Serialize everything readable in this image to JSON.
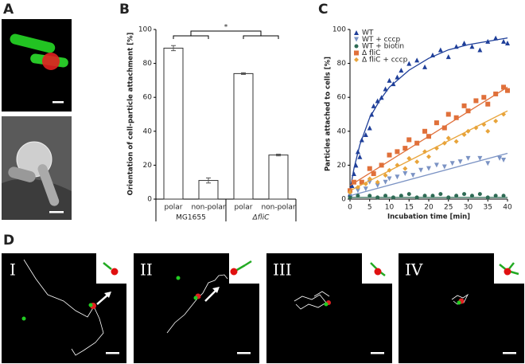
{
  "panel_labels": [
    "A",
    "B",
    "C",
    "D"
  ],
  "d_labels": [
    "I",
    "II",
    "III",
    "IV"
  ],
  "chart_data": [
    {
      "type": "bar",
      "y_label": "Orientation of cell-particle attachment [%]",
      "categories": [
        "polar",
        "non-polar",
        "polar",
        "non-polar"
      ],
      "group_labels": [
        "MG1655",
        "ΔfliC"
      ],
      "values": [
        89,
        11,
        74,
        26
      ],
      "errors": [
        1.5,
        1.5,
        0.5,
        0.5
      ],
      "annotation": "*",
      "color": "#ffffff",
      "ylim": [
        0,
        100
      ],
      "yticks": [
        0,
        20,
        40,
        60,
        80,
        100
      ]
    },
    {
      "type": "scatter",
      "x_label": "Incubation time [min]",
      "y_label": "Particles attached to cells [%]",
      "legend": "top-left",
      "xlim": [
        0,
        40
      ],
      "xticks": [
        0,
        5,
        10,
        15,
        20,
        25,
        30,
        35,
        40
      ],
      "ylim": [
        0,
        100
      ],
      "yticks": [
        0,
        20,
        40,
        60,
        80,
        100
      ],
      "series": [
        {
          "name": "WT",
          "color": "#1f3f99",
          "marker": "triangle-up",
          "x": [
            0,
            0.5,
            1,
            1.5,
            2,
            2.5,
            3,
            4,
            5,
            5.5,
            6,
            7,
            8,
            9,
            10,
            11,
            12,
            13,
            15,
            17,
            19,
            21,
            23,
            25,
            27,
            29,
            31,
            33,
            35,
            37,
            39,
            40
          ],
          "values": [
            3,
            8,
            15,
            20,
            28,
            25,
            35,
            38,
            42,
            50,
            55,
            58,
            60,
            65,
            70,
            68,
            72,
            76,
            80,
            82,
            78,
            85,
            88,
            84,
            90,
            92,
            90,
            88,
            93,
            95,
            93,
            92
          ],
          "fit": {
            "x": [
              0,
              1,
              2.5,
              5,
              7.5,
              10,
              15,
              20,
              25,
              30,
              35,
              40
            ],
            "values": [
              5,
              18,
              32,
              48,
              58,
              66,
              76,
              83,
              88,
              91,
              93,
              95
            ]
          }
        },
        {
          "name": "WT + cccp",
          "color": "#7b93c4",
          "marker": "triangle-down",
          "x": [
            0,
            2,
            4,
            5,
            7,
            9,
            10,
            12,
            14,
            16,
            18,
            20,
            22,
            24,
            26,
            28,
            30,
            33,
            35,
            38,
            39
          ],
          "values": [
            3,
            5,
            6,
            10,
            8,
            10,
            12,
            13,
            15,
            14,
            17,
            18,
            20,
            19,
            21,
            22,
            24,
            24,
            21,
            24,
            23
          ],
          "fit": {
            "x": [
              0,
              40
            ],
            "values": [
              2,
              27
            ]
          }
        },
        {
          "name": "WT + biotin",
          "color": "#2e6b55",
          "marker": "circle",
          "x": [
            0,
            2,
            5,
            7,
            9,
            11,
            13,
            15,
            17,
            19,
            21,
            23,
            25,
            27,
            29,
            31,
            33,
            35,
            37,
            39
          ],
          "values": [
            1,
            2,
            2,
            1,
            2,
            1,
            2,
            3,
            1,
            2,
            2,
            3,
            1,
            2,
            3,
            2,
            3,
            1,
            2,
            2
          ],
          "fit": {
            "x": [
              0,
              40
            ],
            "values": [
              1,
              1
            ]
          }
        },
        {
          "name": "Δ fliC",
          "color": "#e0703a",
          "marker": "square",
          "x": [
            0,
            1,
            3,
            5,
            6,
            8,
            10,
            12,
            14,
            15,
            17,
            19,
            20,
            22,
            24,
            25,
            27,
            29,
            30,
            32,
            34,
            35,
            37,
            39,
            40
          ],
          "values": [
            5,
            10,
            10,
            18,
            15,
            20,
            26,
            28,
            30,
            35,
            33,
            40,
            37,
            45,
            42,
            50,
            48,
            55,
            52,
            58,
            60,
            56,
            62,
            66,
            64
          ],
          "fit": {
            "x": [
              0,
              40
            ],
            "values": [
              8,
              66
            ]
          }
        },
        {
          "name": "Δ fliC + cccp",
          "color": "#e8a43a",
          "marker": "diamond",
          "x": [
            0,
            2,
            4,
            5,
            7,
            9,
            10,
            12,
            14,
            15,
            17,
            19,
            20,
            22,
            24,
            25,
            27,
            29,
            30,
            32,
            34,
            35,
            37,
            39
          ],
          "values": [
            4,
            7,
            9,
            12,
            10,
            14,
            17,
            20,
            18,
            24,
            22,
            28,
            25,
            30,
            33,
            36,
            34,
            38,
            40,
            42,
            44,
            40,
            46,
            50
          ],
          "fit": {
            "x": [
              0,
              40
            ],
            "values": [
              5,
              52
            ]
          }
        }
      ]
    }
  ]
}
